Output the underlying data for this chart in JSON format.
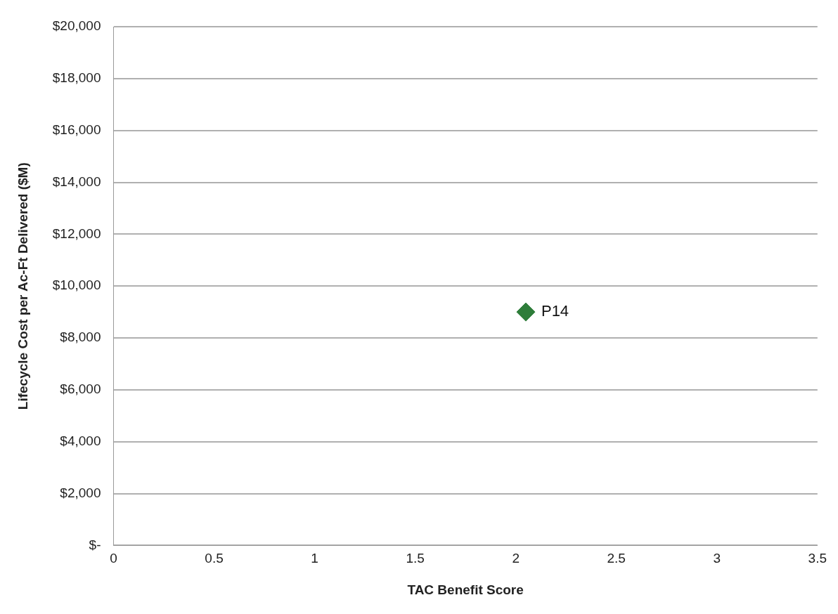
{
  "chart_data": {
    "type": "scatter",
    "xlabel": "TAC Benefit Score",
    "ylabel": "Lifecycle Cost per Ac-Ft Delivered ($M)",
    "x": [
      2.05
    ],
    "values": [
      9000
    ],
    "color": "#2e7d3a",
    "marker": "diamond",
    "annotations": [
      {
        "text": "P14",
        "x": 2.05,
        "y": 9000
      }
    ],
    "xlim": [
      0,
      3.5
    ],
    "xticks": [
      0,
      0.5,
      1,
      1.5,
      2,
      2.5,
      3,
      3.5
    ],
    "ylim": [
      0,
      20000
    ],
    "yticks": [
      {
        "value": 0,
        "label": "$-"
      },
      {
        "value": 2000,
        "label": "$2,000"
      },
      {
        "value": 4000,
        "label": "$4,000"
      },
      {
        "value": 6000,
        "label": "$6,000"
      },
      {
        "value": 8000,
        "label": "$8,000"
      },
      {
        "value": 10000,
        "label": "$10,000"
      },
      {
        "value": 12000,
        "label": "$12,000"
      },
      {
        "value": 14000,
        "label": "$14,000"
      },
      {
        "value": 16000,
        "label": "$16,000"
      },
      {
        "value": 18000,
        "label": "$18,000"
      },
      {
        "value": 20000,
        "label": "$20,000"
      }
    ],
    "grid": "y",
    "legend": false
  }
}
